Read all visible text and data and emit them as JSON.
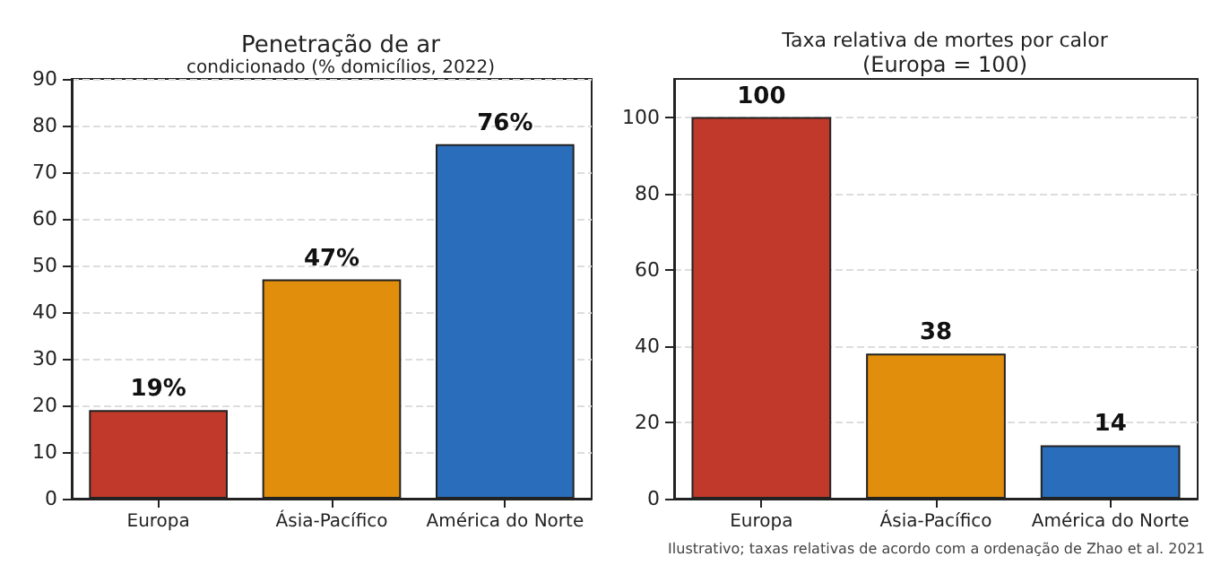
{
  "chart_data": [
    {
      "type": "bar",
      "title": "Penetração de ar",
      "subtitle": "condicionado (% domicílios, 2022)",
      "categories": [
        "Europa",
        "Ásia-Pacífico",
        "América do Norte"
      ],
      "values": [
        19,
        47,
        76
      ],
      "colors": [
        "#c0392b",
        "#e08e0b",
        "#2a6ebb"
      ],
      "value_labels": [
        "19%",
        "47%",
        "76%"
      ],
      "ylim": [
        0,
        90
      ],
      "yticks": [
        0,
        10,
        20,
        30,
        40,
        50,
        60,
        70,
        80,
        90
      ],
      "grid": "y"
    },
    {
      "type": "bar",
      "title": "Taxa relativa de mortes por calor",
      "subtitle": "(Europa = 100)",
      "categories": [
        "Europa",
        "Ásia-Pacífico",
        "América do Norte"
      ],
      "values": [
        100,
        38,
        14
      ],
      "colors": [
        "#c0392b",
        "#e08e0b",
        "#2a6ebb"
      ],
      "data_labels": true,
      "ylim": [
        0,
        110
      ],
      "yticks": [
        0,
        20,
        40,
        60,
        80,
        100
      ],
      "grid": "y",
      "annotations": [
        "Ilustrativo; taxas relativas de acordo com a ordenação de Zhao et al. 2021"
      ]
    }
  ]
}
